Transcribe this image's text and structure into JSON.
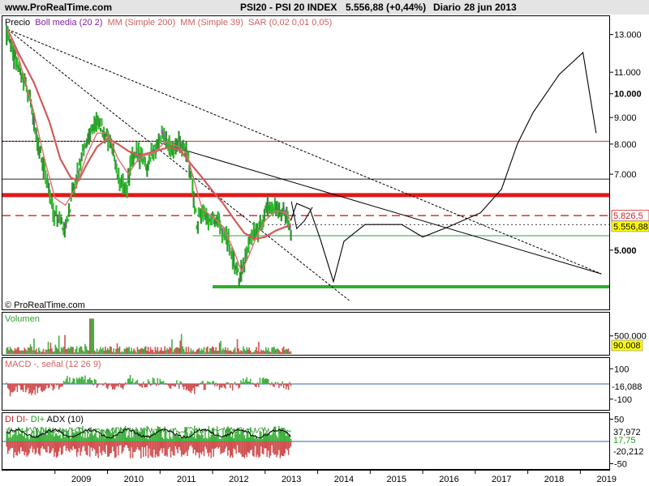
{
  "header": {
    "site": "www.ProRealTime.com",
    "title": "PSI20 - PSI 20 INDEX",
    "quote": "5.556,88 (+0,44%)",
    "period": "Diario",
    "date": "28 jun 2013"
  },
  "chart_data": [
    {
      "type": "line",
      "panel": "price",
      "legend": {
        "precio": "Precio",
        "boll": "Boll media (20 2)",
        "mm200": "MM (Simple 200)",
        "mm39": "MM (Simple 39)",
        "sar": "SAR (0,02 0,01 0,05)"
      },
      "watermark": "© ProRealTime.com",
      "y_scale": "log",
      "ylim": [
        3900,
        14000
      ],
      "y_ticks": [
        {
          "v": 13000,
          "label": "13.000",
          "bold": false
        },
        {
          "v": 11000,
          "label": "11.000",
          "bold": false
        },
        {
          "v": 10000,
          "label": "10.000",
          "bold": true
        },
        {
          "v": 9000,
          "label": "9.000",
          "bold": false
        },
        {
          "v": 8000,
          "label": "8.000",
          "bold": false
        },
        {
          "v": 7000,
          "label": "7.000",
          "bold": false
        },
        {
          "v": 5000,
          "label": "5.000",
          "bold": true
        }
      ],
      "price_labels": [
        {
          "v": 5826.5,
          "label": "5.826,5",
          "color": "#d02020",
          "bg": "#ffffff"
        },
        {
          "v": 5556.88,
          "label": "5.556,88",
          "color": "#000000",
          "bg": "#ffff00"
        }
      ],
      "x_axis": [
        "2009",
        "2010",
        "2011",
        "2012",
        "2013",
        "2014",
        "2015",
        "2016",
        "2017",
        "2018",
        "2019"
      ],
      "close": [
        [
          2008.1,
          13200
        ],
        [
          2008.2,
          12000
        ],
        [
          2008.35,
          11000
        ],
        [
          2008.5,
          10000
        ],
        [
          2008.65,
          8200
        ],
        [
          2008.8,
          7200
        ],
        [
          2008.95,
          6000
        ],
        [
          2009.1,
          5700
        ],
        [
          2009.2,
          5500
        ],
        [
          2009.35,
          6500
        ],
        [
          2009.5,
          7500
        ],
        [
          2009.65,
          8400
        ],
        [
          2009.8,
          8800
        ],
        [
          2009.95,
          8400
        ],
        [
          2010.1,
          7800
        ],
        [
          2010.2,
          6900
        ],
        [
          2010.35,
          6500
        ],
        [
          2010.45,
          7400
        ],
        [
          2010.6,
          7700
        ],
        [
          2010.75,
          7300
        ],
        [
          2010.9,
          7800
        ],
        [
          2011.05,
          8300
        ],
        [
          2011.2,
          7900
        ],
        [
          2011.35,
          8000
        ],
        [
          2011.5,
          7700
        ],
        [
          2011.6,
          6900
        ],
        [
          2011.7,
          5600
        ],
        [
          2011.8,
          6000
        ],
        [
          2011.9,
          5700
        ],
        [
          2012.0,
          5800
        ],
        [
          2012.1,
          5700
        ],
        [
          2012.2,
          5400
        ],
        [
          2012.3,
          5200
        ],
        [
          2012.4,
          4700
        ],
        [
          2012.5,
          4450
        ],
        [
          2012.6,
          4600
        ],
        [
          2012.7,
          5200
        ],
        [
          2012.8,
          5400
        ],
        [
          2012.9,
          5500
        ],
        [
          2013.0,
          5900
        ],
        [
          2013.1,
          6100
        ],
        [
          2013.2,
          6000
        ],
        [
          2013.3,
          5900
        ],
        [
          2013.4,
          5800
        ],
        [
          2013.49,
          5556.88
        ]
      ],
      "mm200": [
        [
          2008.1,
          13300
        ],
        [
          2008.3,
          12000
        ],
        [
          2008.6,
          10500
        ],
        [
          2008.9,
          8800
        ],
        [
          2009.1,
          7500
        ],
        [
          2009.3,
          6900
        ],
        [
          2009.45,
          6800
        ],
        [
          2009.6,
          7300
        ],
        [
          2009.8,
          7900
        ],
        [
          2010.0,
          8200
        ],
        [
          2010.2,
          8000
        ],
        [
          2010.4,
          7750
        ],
        [
          2010.6,
          7600
        ],
        [
          2010.8,
          7700
        ],
        [
          2011.0,
          7800
        ],
        [
          2011.2,
          7900
        ],
        [
          2011.4,
          7750
        ],
        [
          2011.6,
          7300
        ],
        [
          2011.8,
          6900
        ],
        [
          2012.0,
          6500
        ],
        [
          2012.2,
          6150
        ],
        [
          2012.4,
          5750
        ],
        [
          2012.6,
          5400
        ],
        [
          2012.8,
          5250
        ],
        [
          2013.0,
          5300
        ],
        [
          2013.2,
          5450
        ],
        [
          2013.4,
          5550
        ],
        [
          2013.49,
          5600
        ]
      ],
      "mm39": [
        [
          2008.1,
          13300
        ],
        [
          2008.3,
          11800
        ],
        [
          2008.6,
          9200
        ],
        [
          2008.8,
          7500
        ],
        [
          2009.0,
          6300
        ],
        [
          2009.2,
          6100
        ],
        [
          2009.4,
          6600
        ],
        [
          2009.6,
          7600
        ],
        [
          2009.8,
          8400
        ],
        [
          2010.0,
          8400
        ],
        [
          2010.2,
          7500
        ],
        [
          2010.4,
          7000
        ],
        [
          2010.55,
          7400
        ],
        [
          2010.7,
          7600
        ],
        [
          2010.9,
          7700
        ],
        [
          2011.1,
          8100
        ],
        [
          2011.3,
          7950
        ],
        [
          2011.5,
          7700
        ],
        [
          2011.65,
          6800
        ],
        [
          2011.8,
          6000
        ],
        [
          2012.0,
          5800
        ],
        [
          2012.2,
          5550
        ],
        [
          2012.4,
          5000
        ],
        [
          2012.55,
          4550
        ],
        [
          2012.7,
          4900
        ],
        [
          2012.85,
          5350
        ],
        [
          2013.0,
          5700
        ],
        [
          2013.2,
          5950
        ],
        [
          2013.4,
          5900
        ],
        [
          2013.49,
          5700
        ]
      ],
      "horizontal_lines": [
        {
          "v": 8100,
          "color": "#d03030",
          "width": 1,
          "dash": "none"
        },
        {
          "v": 6850,
          "color": "#202020",
          "width": 1,
          "dash": "none"
        },
        {
          "v": 6380,
          "color": "#e01818",
          "width": 5,
          "dash": "none"
        },
        {
          "v": 5826.5,
          "color": "#d02020",
          "width": 1.4,
          "dash": "10,6"
        },
        {
          "v": 5330,
          "color": "#30a030",
          "width": 1,
          "dash": "none",
          "x_from": 2012.0
        },
        {
          "v": 4250,
          "color": "#2db02d",
          "width": 4,
          "dash": "none",
          "x_from": 2012.0
        }
      ],
      "trend_lines": [
        {
          "points": [
            [
              2008.1,
              13300
            ],
            [
              2019.4,
              4500
            ]
          ],
          "color": "#000000",
          "dash": "3,2"
        },
        {
          "points": [
            [
              2008.1,
              13300
            ],
            [
              2014.6,
              4000
            ]
          ],
          "color": "#000000",
          "dash": "3,2"
        },
        {
          "points": [
            [
              2010.9,
              8100
            ],
            [
              2019.4,
              4500
            ]
          ],
          "color": "#000000",
          "dash": "none"
        }
      ],
      "projection": [
        [
          2013.49,
          5700
        ],
        [
          2013.6,
          6150
        ],
        [
          2013.85,
          6000
        ],
        [
          2014.05,
          5250
        ],
        [
          2014.3,
          4350
        ],
        [
          2014.5,
          5200
        ],
        [
          2014.9,
          5600
        ],
        [
          2015.6,
          5600
        ],
        [
          2016.0,
          5300
        ],
        [
          2016.5,
          5550
        ],
        [
          2017.1,
          5900
        ],
        [
          2017.5,
          6550
        ],
        [
          2017.8,
          8000
        ],
        [
          2018.1,
          9200
        ],
        [
          2018.6,
          10900
        ],
        [
          2019.05,
          12000
        ],
        [
          2019.3,
          8400
        ]
      ],
      "projection_minor": [
        [
          2013.5,
          6200
        ],
        [
          2013.6,
          5500
        ],
        [
          2013.75,
          5700
        ],
        [
          2013.9,
          6050
        ]
      ]
    },
    {
      "type": "bar",
      "panel": "volume",
      "label": "Volumen",
      "y_ticks": [
        {
          "v": 500000,
          "label": "500.000"
        }
      ],
      "last_value": "90.008",
      "last_bg": "#ffff00",
      "ylim": [
        0,
        1100000
      ]
    },
    {
      "type": "area",
      "panel": "macd",
      "label": "MACD -, señal (12 26 9)",
      "y_ticks": [
        {
          "v": 100,
          "label": "100"
        },
        {
          "v": -100,
          "label": "-100"
        }
      ],
      "last_value": "-16,088",
      "ylim": [
        -160,
        160
      ]
    },
    {
      "type": "line",
      "panel": "dmi",
      "label_parts": [
        {
          "text": "DI",
          "color": "#d02020"
        },
        {
          "text": " DI- ",
          "color": "#d02020"
        },
        {
          "text": "DI+",
          "color": "#20a020"
        },
        {
          "text": " ADX (10)",
          "color": "#000000"
        }
      ],
      "y_ticks": [
        {
          "v": 50,
          "label": "50"
        },
        {
          "v": -50,
          "label": "-50"
        }
      ],
      "last_values": [
        {
          "label": "37,972",
          "color": "#000000"
        },
        {
          "label": "17,75",
          "color": "#20a020"
        },
        {
          "label": "-20,212",
          "color": "#000000"
        }
      ],
      "ylim": [
        -60,
        60
      ]
    }
  ]
}
